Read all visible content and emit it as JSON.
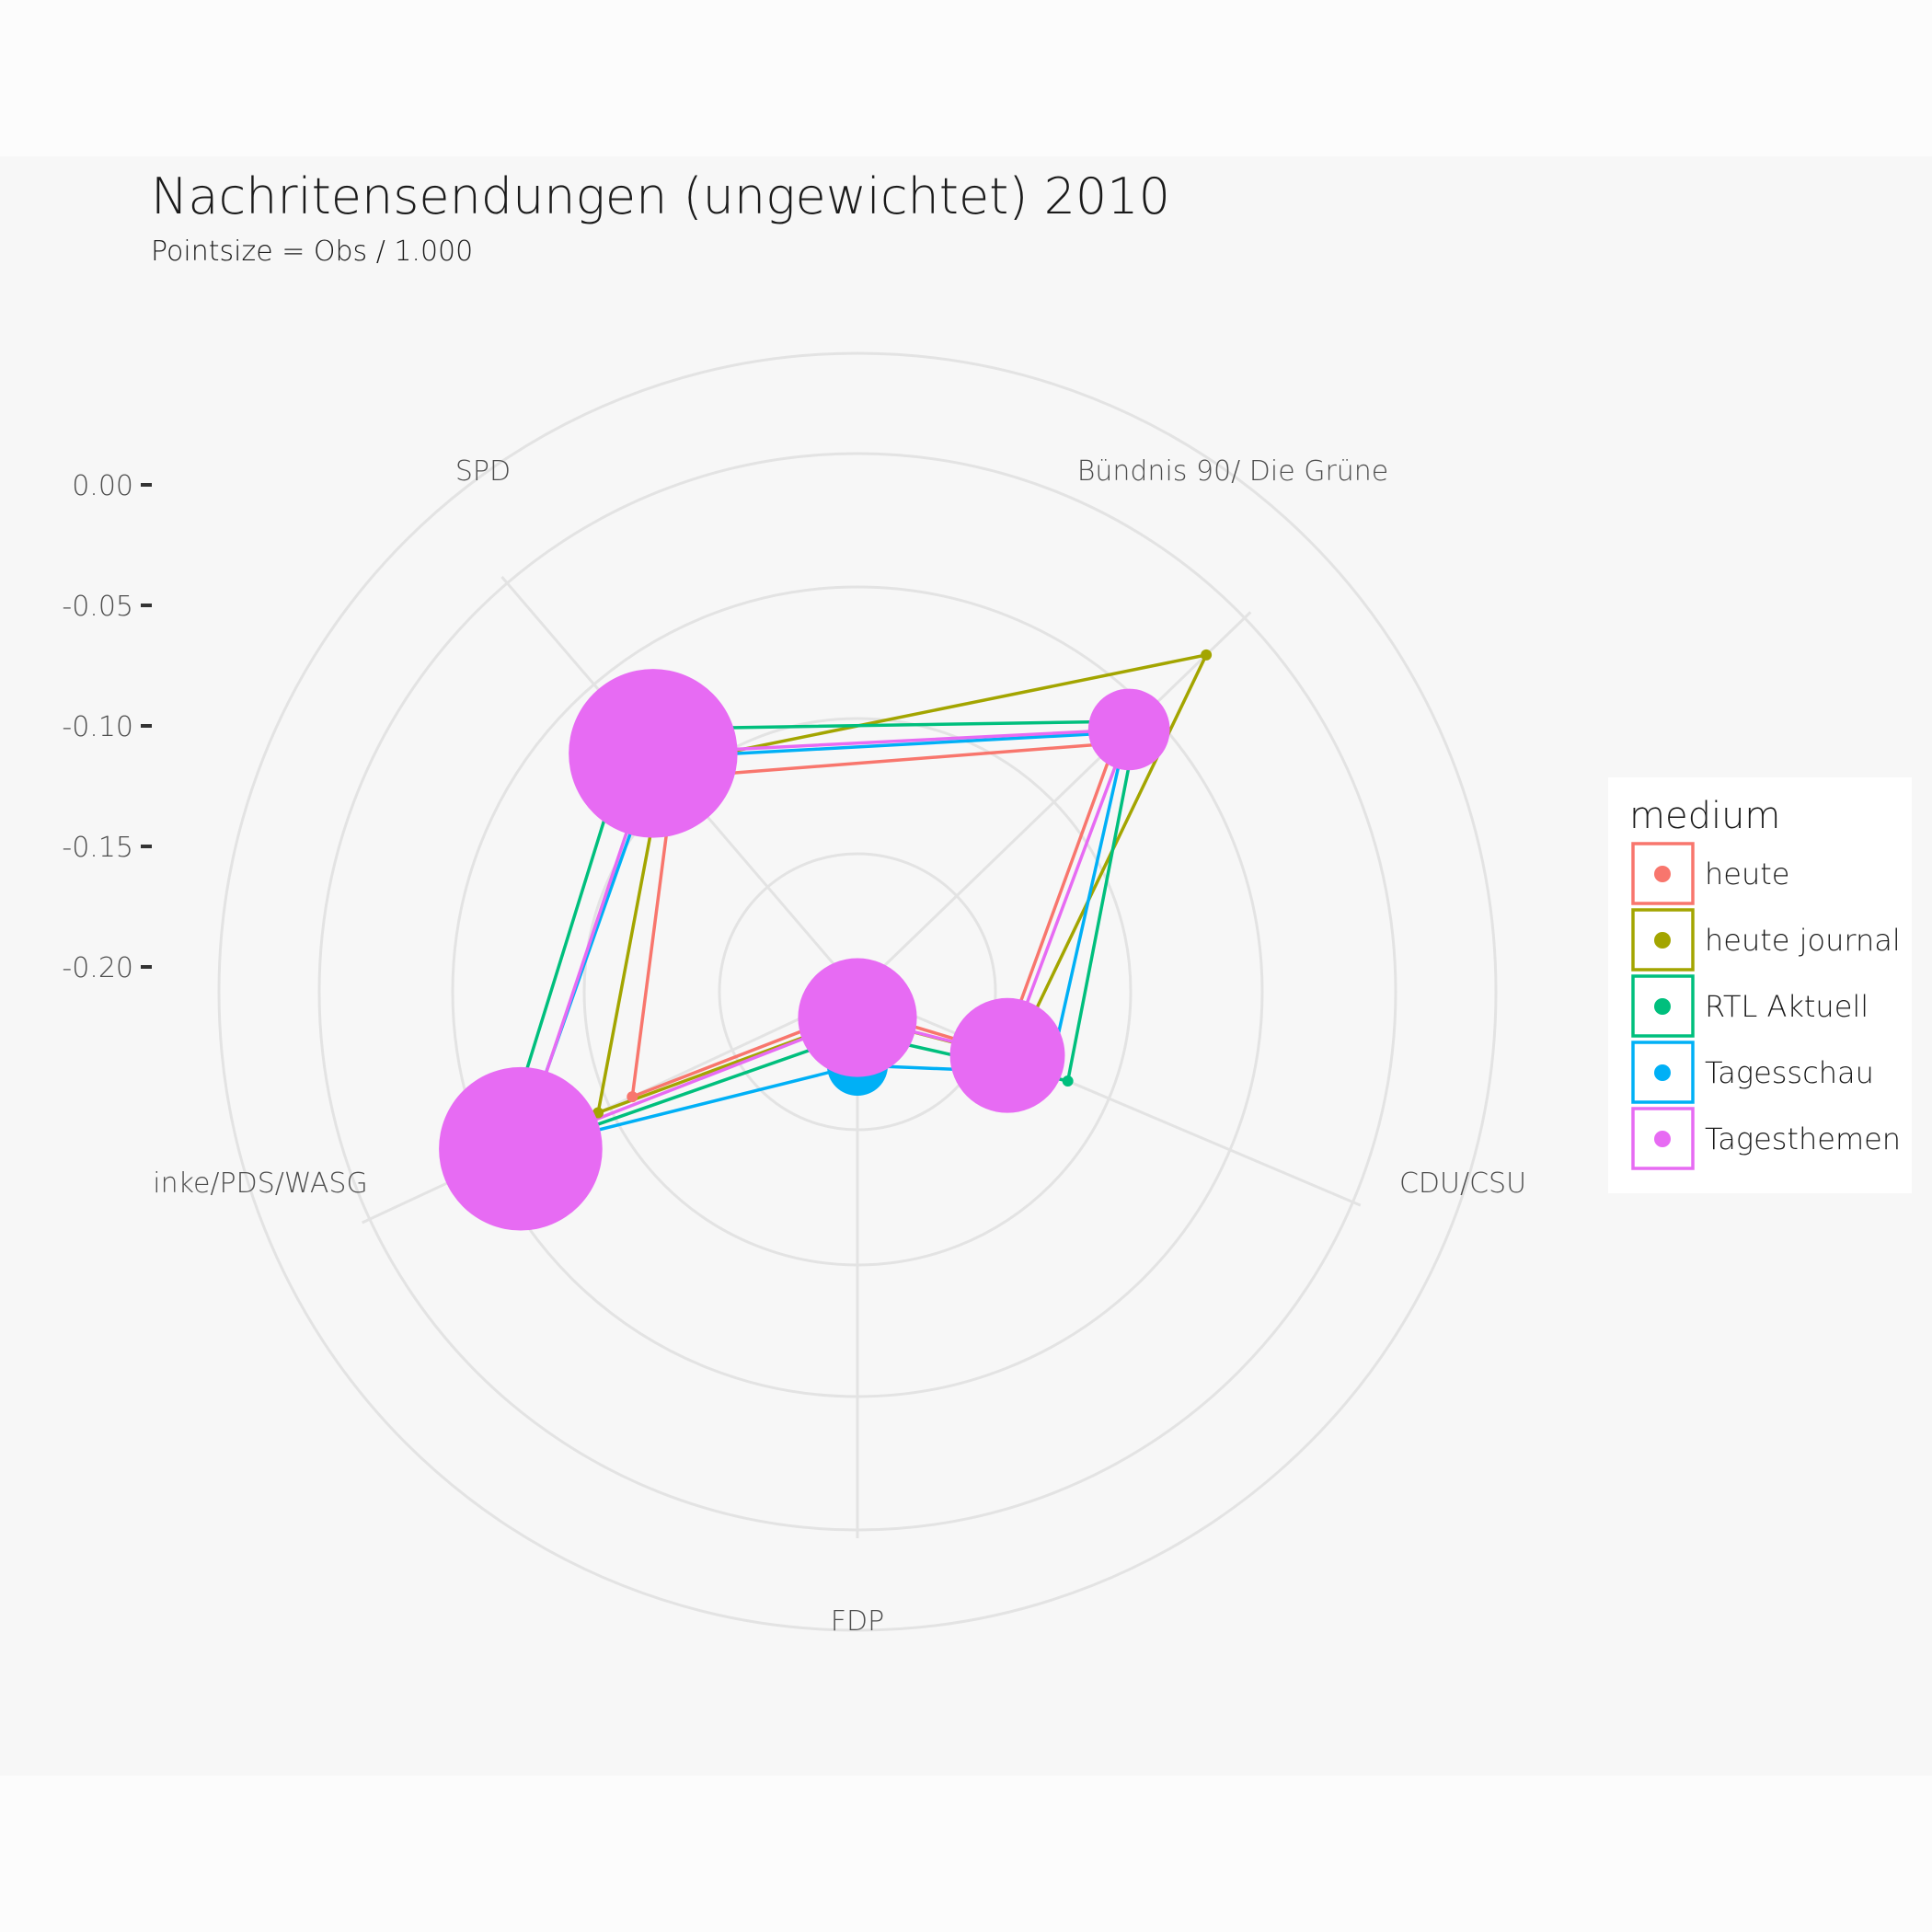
{
  "chart_data": {
    "type": "radar",
    "title": "Nachritensendungen (ungewichtet) 2010",
    "subtitle": "Pointsize = Obs / 1.000",
    "axes": [
      "SPD",
      "Bündnis 90/ Die Grüne",
      "CDU/CSU",
      "FDP",
      "inke/PDS/WASG"
    ],
    "r_ticks": [
      "0.00",
      "-0.05",
      "-0.10",
      "-0.15",
      "-0.20"
    ],
    "r_tick_values": [
      0.0,
      -0.05,
      -0.1,
      -0.15,
      -0.2
    ],
    "r_range": [
      -0.25,
      0.0
    ],
    "grid": true,
    "legend": {
      "title": "medium",
      "position": "right"
    },
    "series": [
      {
        "name": "heute",
        "color": "#F8766D",
        "values": [
          -0.108,
          -0.07,
          -0.171,
          -0.241,
          -0.125
        ],
        "sizes": [
          0,
          0,
          0,
          0,
          0
        ]
      },
      {
        "name": "heute journal",
        "color": "#A3A500",
        "values": [
          -0.1,
          -0.006,
          -0.165,
          -0.237,
          -0.106
        ],
        "sizes": [
          0,
          0,
          0,
          0,
          0
        ]
      },
      {
        "name": "RTL Aktuell",
        "color": "#00BF7D",
        "values": [
          -0.076,
          -0.054,
          -0.135,
          -0.229,
          -0.051
        ],
        "sizes": [
          0,
          0,
          0,
          0,
          0
        ]
      },
      {
        "name": "Tagesschau",
        "color": "#00B0F6",
        "values": [
          -0.095,
          -0.062,
          -0.145,
          -0.213,
          -0.062
        ],
        "sizes": [
          0,
          0,
          0,
          0.6,
          0
        ]
      },
      {
        "name": "Tagesthemen",
        "color": "#E76BF3",
        "values": [
          -0.092,
          -0.06,
          -0.168,
          -0.237,
          -0.063
        ],
        "sizes": [
          6,
          1.2,
          2.6,
          2.8,
          5.6
        ]
      }
    ]
  }
}
